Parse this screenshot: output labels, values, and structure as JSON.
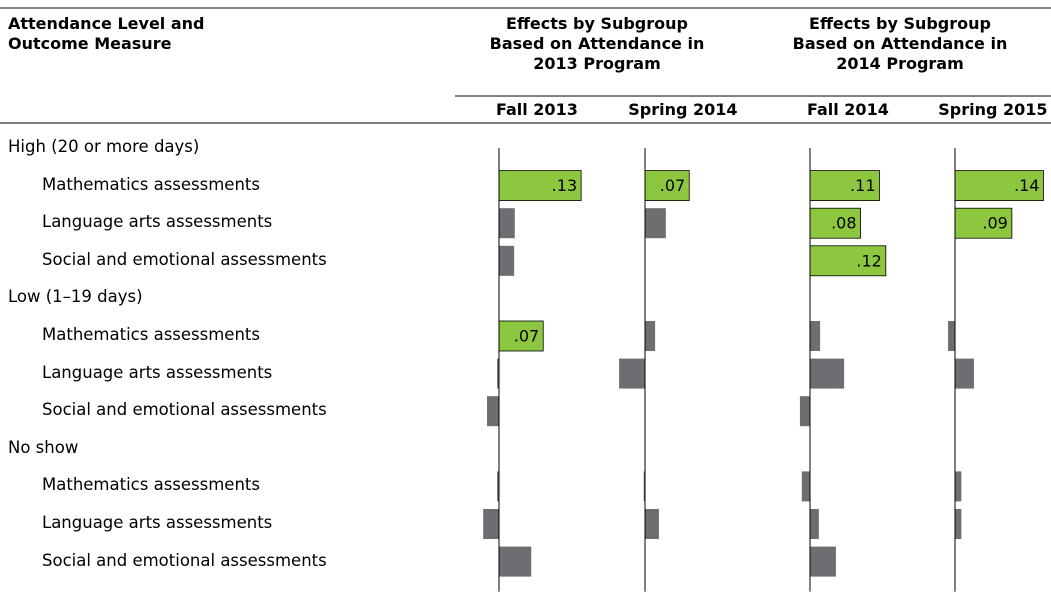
{
  "chart_data": {
    "type": "bar",
    "orientation": "horizontal",
    "header": "Attendance Level and Outcome Measure",
    "color": "#6d6e71",
    "highlight_color": "#8dc63f",
    "xlim": [
      -0.05,
      0.17
    ],
    "levels": [
      {
        "name": "High (20 or more days)",
        "categories": [
          "Mathematics assessments",
          "Language arts assessments",
          "Social and emotional assessments"
        ]
      },
      {
        "name": "Low (1–19 days)",
        "categories": [
          "Mathematics assessments",
          "Language arts assessments",
          "Social and emotional assessments"
        ]
      },
      {
        "name": "No show",
        "categories": [
          "Mathematics assessments",
          "Language arts assessments",
          "Social and emotional assessments"
        ]
      }
    ],
    "groups": [
      {
        "title": "Effects by Subgroup Based on Attendance in 2013 Program",
        "series": [
          {
            "name": "Fall 2013",
            "values": [
              0.13,
              0.025,
              0.024,
              0.07,
              -0.003,
              -0.019,
              -0.003,
              -0.025,
              0.051
            ],
            "value_labels": [
              ".13",
              null,
              null,
              ".07",
              null,
              null,
              null,
              null,
              null
            ]
          },
          {
            "name": "Spring 2014",
            "values": [
              0.07,
              0.033,
              0,
              0.016,
              -0.041,
              0,
              -0.002,
              0.022,
              0
            ],
            "value_labels": [
              ".07",
              null,
              null,
              null,
              null,
              null,
              null,
              null,
              null
            ]
          }
        ]
      },
      {
        "title": "Effects by Subgroup Based on Attendance in 2014 Program",
        "series": [
          {
            "name": "Fall 2014",
            "values": [
              0.11,
              0.08,
              0.12,
              0.016,
              0.054,
              -0.016,
              -0.013,
              0.014,
              0.041
            ],
            "value_labels": [
              ".11",
              ".08",
              ".12",
              null,
              null,
              null,
              null,
              null,
              null
            ]
          },
          {
            "name": "Spring 2015",
            "values": [
              0.14,
              0.09,
              0,
              -0.011,
              0.03,
              0,
              0.01,
              0.01,
              0
            ],
            "value_labels": [
              ".14",
              ".09",
              null,
              null,
              null,
              null,
              null,
              null,
              null
            ]
          }
        ]
      }
    ]
  }
}
